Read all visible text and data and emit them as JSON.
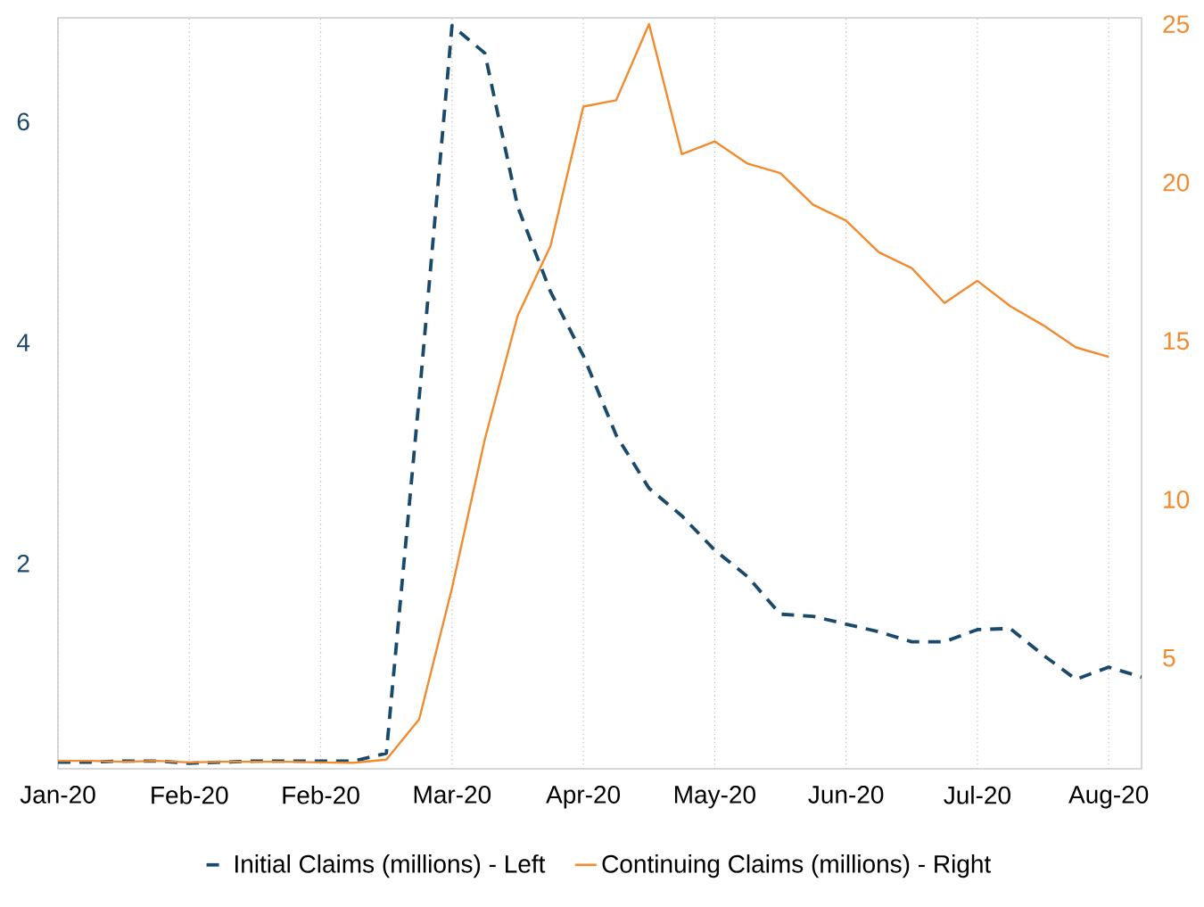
{
  "chart_data": {
    "type": "line",
    "categories": [
      "Jan-20",
      null,
      null,
      null,
      "Feb-20",
      null,
      null,
      null,
      "Feb-20",
      null,
      null,
      null,
      "Mar-20",
      null,
      null,
      null,
      "Apr-20",
      null,
      null,
      null,
      "May-20",
      null,
      null,
      null,
      "Jun-20",
      null,
      null,
      null,
      "Jul-20",
      null,
      null,
      null,
      "Aug-20",
      null
    ],
    "series": [
      {
        "name": "Initial Claims (millions) - Left",
        "color": "#1a4a6b",
        "line_style": "dashed",
        "values": [
          0.2,
          0.2,
          0.21,
          0.21,
          0.19,
          0.2,
          0.21,
          0.21,
          0.21,
          0.21,
          0.28,
          3.5,
          6.87,
          6.62,
          5.23,
          4.46,
          3.88,
          3.16,
          2.68,
          2.43,
          2.12,
          1.88,
          1.54,
          1.52,
          1.45,
          1.38,
          1.29,
          1.29,
          1.4,
          1.41,
          1.17,
          0.95,
          1.06,
          0.97
        ]
      },
      {
        "name": "Continuing Claims (millions) - Right",
        "color": "#f28a2e",
        "line_style": "solid",
        "axis": "y2",
        "values": [
          1.75,
          1.75,
          1.72,
          1.75,
          1.7,
          1.72,
          1.72,
          1.72,
          1.7,
          1.69,
          1.79,
          3.06,
          7.2,
          11.9,
          15.8,
          18.0,
          22.4,
          22.6,
          25.0,
          20.9,
          21.3,
          20.6,
          20.3,
          19.3,
          18.8,
          17.8,
          17.3,
          16.2,
          16.9,
          16.1,
          15.5,
          14.8,
          14.5,
          null
        ]
      }
    ],
    "ylim": [
      0.14,
      6.94
    ],
    "yticks": [
      2,
      4,
      6
    ],
    "y2lim": [
      1.5,
      25.2
    ],
    "y2ticks": [
      5,
      10,
      15,
      20,
      25
    ],
    "grid": "x",
    "legend": "bottom"
  }
}
